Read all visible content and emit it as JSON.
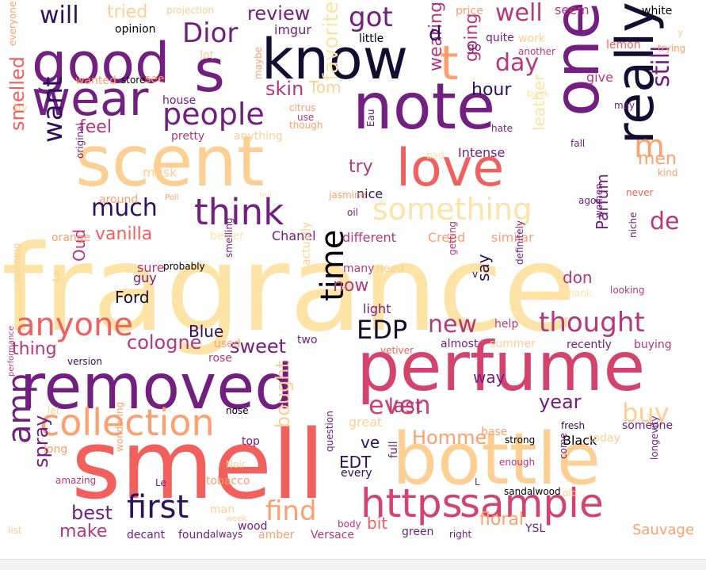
{
  "colors": {
    "background": "#ffffff",
    "palette": [
      "#2c115f",
      "#721f81",
      "#b73779",
      "#f1605d",
      "#fe9f6d",
      "#fecf92",
      "#fde4a6",
      "#000004"
    ]
  },
  "words": [
    {
      "text": "fragrance",
      "color": "#fde4a6"
    },
    {
      "text": "smell",
      "color": "#f1605d"
    },
    {
      "text": "perfume",
      "color": "#d3436e"
    },
    {
      "text": "bottle",
      "color": "#fecf92"
    },
    {
      "text": "scent",
      "color": "#fecf92"
    },
    {
      "text": "removed",
      "color": "#721f81"
    },
    {
      "text": "note",
      "color": "#721f81"
    },
    {
      "text": "one",
      "color": "#721f81"
    },
    {
      "text": "know",
      "color": "#120d31"
    },
    {
      "text": "good",
      "color": "#721f81"
    },
    {
      "text": "s",
      "color": "#721f81"
    },
    {
      "text": "wear",
      "color": "#721f81"
    },
    {
      "text": "really",
      "color": "#120d31"
    },
    {
      "text": "love",
      "color": "#f1605d"
    },
    {
      "text": "https",
      "color": "#d3436e"
    },
    {
      "text": "sample",
      "color": "#d3436e"
    },
    {
      "text": "collection",
      "color": "#fe9f6d"
    },
    {
      "text": "think",
      "color": "#721f81"
    },
    {
      "text": "time",
      "color": "#000004"
    },
    {
      "text": "anyone",
      "color": "#f1605d"
    },
    {
      "text": "amp",
      "color": "#721f81"
    },
    {
      "text": "first",
      "color": "#2c115f"
    },
    {
      "text": "t",
      "color": "#fe9f6d"
    },
    {
      "text": "something",
      "color": "#fde4a6"
    },
    {
      "text": "people",
      "color": "#721f81"
    },
    {
      "text": "thought",
      "color": "#b73779"
    },
    {
      "text": "find",
      "color": "#fe9f6d"
    },
    {
      "text": "even",
      "color": "#d3436e"
    },
    {
      "text": "got",
      "color": "#721f81"
    },
    {
      "text": "Dior",
      "color": "#721f81"
    },
    {
      "text": "day",
      "color": "#b73779"
    },
    {
      "text": "well",
      "color": "#b73779"
    },
    {
      "text": "much",
      "color": "#2c115f"
    },
    {
      "text": "want",
      "color": "#2c115f"
    },
    {
      "text": "EDP",
      "color": "#120d31"
    },
    {
      "text": "new",
      "color": "#b73779"
    },
    {
      "text": "buy",
      "color": "#fecf92"
    },
    {
      "text": "m",
      "color": "#fe9f6d"
    },
    {
      "text": "will",
      "color": "#2c115f"
    },
    {
      "text": "still",
      "color": "#721f81"
    },
    {
      "text": "favorite",
      "color": "#fde4a6"
    },
    {
      "text": "de",
      "color": "#b73779"
    },
    {
      "text": "last",
      "color": "#b73779"
    },
    {
      "text": "sweet",
      "color": "#721f81"
    },
    {
      "text": "cologne",
      "color": "#b73779"
    },
    {
      "text": "best",
      "color": "#721f81"
    },
    {
      "text": "make",
      "color": "#b73779"
    },
    {
      "text": "spray",
      "color": "#721f81"
    },
    {
      "text": "bought",
      "color": "#fecf92"
    },
    {
      "text": "year",
      "color": "#721f81"
    },
    {
      "text": "Homme",
      "color": "#fe9f6d"
    },
    {
      "text": "review",
      "color": "#721f81"
    },
    {
      "text": "tried",
      "color": "#fecf92"
    },
    {
      "text": "skin",
      "color": "#b73779"
    },
    {
      "text": "Tom",
      "color": "#fecf92"
    },
    {
      "text": "feel",
      "color": "#b73779"
    },
    {
      "text": "hour",
      "color": "#2c115f"
    },
    {
      "text": "wearing",
      "color": "#b73779"
    },
    {
      "text": "going",
      "color": "#b73779"
    },
    {
      "text": "smelled",
      "color": "#f1605d"
    },
    {
      "text": "vanilla",
      "color": "#f1605d"
    },
    {
      "text": "Parfum",
      "color": "#721f81"
    },
    {
      "text": "men",
      "color": "#fe9f6d"
    },
    {
      "text": "leather",
      "color": "#fde4a6"
    },
    {
      "text": "try",
      "color": "#b73779"
    },
    {
      "text": "Blue",
      "color": "#2c115f"
    },
    {
      "text": "Ford",
      "color": "#120d31"
    },
    {
      "text": "Oud",
      "color": "#b73779"
    },
    {
      "text": "thing",
      "color": "#b73779"
    },
    {
      "text": "ve",
      "color": "#2c115f"
    },
    {
      "text": "EDT",
      "color": "#2c115f"
    },
    {
      "text": "bit",
      "color": "#f1605d"
    },
    {
      "text": "floral",
      "color": "#fe9f6d"
    },
    {
      "text": "don",
      "color": "#b73779"
    },
    {
      "text": "say",
      "color": "#2c115f"
    },
    {
      "text": "now",
      "color": "#b73779"
    },
    {
      "text": "way",
      "color": "#721f81"
    },
    {
      "text": "great",
      "color": "#fecf92"
    },
    {
      "text": "Black",
      "color": "#000004"
    },
    {
      "text": "imgur",
      "color": "#721f81"
    },
    {
      "text": "d",
      "color": "#2c115f"
    },
    {
      "text": "seem",
      "color": "#b73779"
    },
    {
      "text": "give",
      "color": "#b73779"
    },
    {
      "text": "Chanel",
      "color": "#721f81"
    },
    {
      "text": "Creed",
      "color": "#fe9f6d"
    },
    {
      "text": "different",
      "color": "#b73779"
    },
    {
      "text": "similar",
      "color": "#fe9f6d"
    },
    {
      "text": "Intense",
      "color": "#721f81"
    },
    {
      "text": "nice",
      "color": "#2c115f"
    },
    {
      "text": "light",
      "color": "#721f81"
    },
    {
      "text": "help",
      "color": "#b73779"
    },
    {
      "text": "recently",
      "color": "#721f81"
    },
    {
      "text": "buying",
      "color": "#b73779"
    },
    {
      "text": "summer",
      "color": "#fecf92"
    },
    {
      "text": "almost",
      "color": "#721f81"
    },
    {
      "text": "two",
      "color": "#721f81"
    },
    {
      "text": "rose",
      "color": "#b73779"
    },
    {
      "text": "used",
      "color": "#fe9f6d"
    },
    {
      "text": "many",
      "color": "#b73779"
    },
    {
      "text": "need",
      "color": "#fecf92"
    },
    {
      "text": "guy",
      "color": "#721f81"
    },
    {
      "text": "sure",
      "color": "#b73779"
    },
    {
      "text": "probably",
      "color": "#000004"
    },
    {
      "text": "musk",
      "color": "#fecf92"
    },
    {
      "text": "pretty",
      "color": "#b73779"
    },
    {
      "text": "anything",
      "color": "#fecf92"
    },
    {
      "text": "around",
      "color": "#fe9f6d"
    },
    {
      "text": "Poll",
      "color": "#fe9f6d"
    },
    {
      "text": "orange",
      "color": "#fe9f6d"
    },
    {
      "text": "better",
      "color": "#fde4a6"
    },
    {
      "text": "lemon",
      "color": "#f1605d"
    },
    {
      "text": "trying",
      "color": "#fe9f6d"
    },
    {
      "text": "white",
      "color": "#000004"
    },
    {
      "text": "price",
      "color": "#fe9f6d"
    },
    {
      "text": "projection",
      "color": "#fecf92"
    },
    {
      "text": "opinion",
      "color": "#000004"
    },
    {
      "text": "little",
      "color": "#000004"
    },
    {
      "text": "work",
      "color": "#fecf92"
    },
    {
      "text": "quite",
      "color": "#721f81"
    },
    {
      "text": "another",
      "color": "#b73779"
    },
    {
      "text": "go",
      "color": "#721f81"
    },
    {
      "text": "lot",
      "color": "#fecf92"
    },
    {
      "text": "wanted",
      "color": "#fe9f6d"
    },
    {
      "text": "store",
      "color": "#000004"
    },
    {
      "text": "see",
      "color": "#fe9f6d"
    },
    {
      "text": "house",
      "color": "#721f81"
    },
    {
      "text": "maybe",
      "color": "#fe9f6d"
    },
    {
      "text": "citrus",
      "color": "#fe9f6d"
    },
    {
      "text": "use",
      "color": "#b73779"
    },
    {
      "text": "though",
      "color": "#fe9f6d"
    },
    {
      "text": "dry",
      "color": "#fecf92"
    },
    {
      "text": "everyone",
      "color": "#fe9f6d"
    },
    {
      "text": "back",
      "color": "#fde4a6"
    },
    {
      "text": "may",
      "color": "#721f81"
    },
    {
      "text": "hate",
      "color": "#721f81"
    },
    {
      "text": "fall",
      "color": "#721f81"
    },
    {
      "text": "kind",
      "color": "#fe9f6d"
    },
    {
      "text": "never",
      "color": "#f1605d"
    },
    {
      "text": "ago",
      "color": "#721f81"
    },
    {
      "text": "women",
      "color": "#721f81"
    },
    {
      "text": "niche",
      "color": "#721f81"
    },
    {
      "text": "looking",
      "color": "#b73779"
    },
    {
      "text": "Thank",
      "color": "#fde4a6"
    },
    {
      "text": "definitely",
      "color": "#721f81"
    },
    {
      "text": "getting",
      "color": "#b73779"
    },
    {
      "text": "actually",
      "color": "#fecf92"
    },
    {
      "text": "smelling",
      "color": "#721f81"
    },
    {
      "text": "opening",
      "color": "#fecf92"
    },
    {
      "text": "La",
      "color": "#fecf92"
    },
    {
      "text": "original",
      "color": "#721f81"
    },
    {
      "text": "jasmine",
      "color": "#fe9f6d"
    },
    {
      "text": "oil",
      "color": "#721f81"
    },
    {
      "text": "Eau",
      "color": "#721f81"
    },
    {
      "text": "bad",
      "color": "#fde4a6"
    },
    {
      "text": "tell",
      "color": "#fde4a6"
    },
    {
      "text": "version",
      "color": "#2c115f"
    },
    {
      "text": "vetiver",
      "color": "#f1605d"
    },
    {
      "text": "v",
      "color": "#2c115f"
    },
    {
      "text": "nose",
      "color": "#000004"
    },
    {
      "text": "let",
      "color": "#fecf92"
    },
    {
      "text": "performance",
      "color": "#b73779"
    },
    {
      "text": "top",
      "color": "#721f81"
    },
    {
      "text": "question",
      "color": "#721f81"
    },
    {
      "text": "every",
      "color": "#2c115f"
    },
    {
      "text": "full",
      "color": "#721f81"
    },
    {
      "text": "base",
      "color": "#fe9f6d"
    },
    {
      "text": "strong",
      "color": "#000004"
    },
    {
      "text": "fresh",
      "color": "#2c115f"
    },
    {
      "text": "someone",
      "color": "#721f81"
    },
    {
      "text": "today",
      "color": "#fecf92"
    },
    {
      "text": "come",
      "color": "#721f81"
    },
    {
      "text": "enough",
      "color": "#b73779"
    },
    {
      "text": "longevity",
      "color": "#721f81"
    },
    {
      "text": "Sauvage",
      "color": "#fe9f6d"
    },
    {
      "text": "sandalwood",
      "color": "#000004"
    },
    {
      "text": "old",
      "color": "#fecf92"
    },
    {
      "text": "L",
      "color": "#721f81"
    },
    {
      "text": "YSL",
      "color": "#721f81"
    },
    {
      "text": "green",
      "color": "#721f81"
    },
    {
      "text": "right",
      "color": "#721f81"
    },
    {
      "text": "body",
      "color": "#b73779"
    },
    {
      "text": "Versace",
      "color": "#b73779"
    },
    {
      "text": "amber",
      "color": "#fe9f6d"
    },
    {
      "text": "wood",
      "color": "#721f81"
    },
    {
      "text": "always",
      "color": "#721f81"
    },
    {
      "text": "found",
      "color": "#721f81"
    },
    {
      "text": "decant",
      "color": "#721f81"
    },
    {
      "text": "man",
      "color": "#fecf92"
    },
    {
      "text": "week",
      "color": "#fecf92"
    },
    {
      "text": "tobacco",
      "color": "#fe9f6d"
    },
    {
      "text": "Noir",
      "color": "#fecf92"
    },
    {
      "text": "Le",
      "color": "#721f81"
    },
    {
      "text": "amazing",
      "color": "#b73779"
    },
    {
      "text": "wondering",
      "color": "#fe9f6d"
    },
    {
      "text": "list",
      "color": "#fecf92"
    },
    {
      "text": "long",
      "color": "#fe9f6d"
    },
    {
      "text": "y",
      "color": "#fecf92"
    }
  ]
}
